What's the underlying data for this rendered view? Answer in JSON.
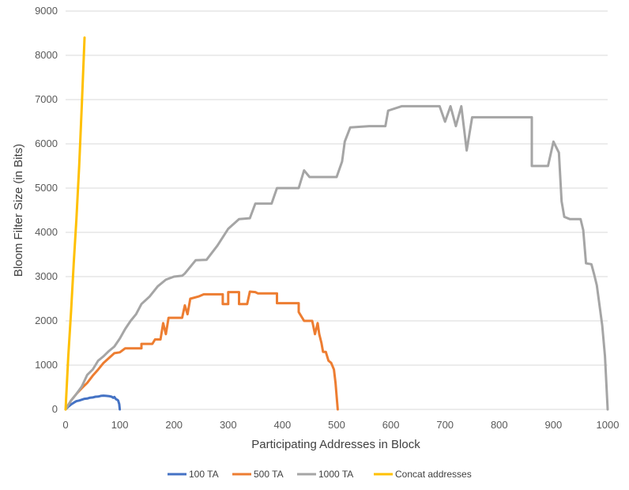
{
  "chart_data": {
    "type": "line",
    "title": "",
    "xlabel": "Participating Addresses in Block",
    "ylabel": "Bloom Filter Size (in Bits)",
    "xlim": [
      0,
      1000
    ],
    "ylim": [
      0,
      9000
    ],
    "x_ticks": [
      0,
      100,
      200,
      300,
      400,
      500,
      600,
      700,
      800,
      900,
      1000
    ],
    "y_ticks": [
      0,
      1000,
      2000,
      3000,
      4000,
      5000,
      6000,
      7000,
      8000,
      9000
    ],
    "grid": "horizontal",
    "legend_position": "bottom",
    "series": [
      {
        "name": "100 TA",
        "color": "#4472C4",
        "points": [
          [
            0,
            0
          ],
          [
            5,
            60
          ],
          [
            10,
            110
          ],
          [
            15,
            150
          ],
          [
            20,
            185
          ],
          [
            25,
            200
          ],
          [
            30,
            220
          ],
          [
            35,
            240
          ],
          [
            40,
            245
          ],
          [
            45,
            265
          ],
          [
            50,
            270
          ],
          [
            55,
            285
          ],
          [
            60,
            290
          ],
          [
            65,
            305
          ],
          [
            70,
            310
          ],
          [
            75,
            305
          ],
          [
            80,
            300
          ],
          [
            85,
            285
          ],
          [
            88,
            260
          ],
          [
            90,
            280
          ],
          [
            93,
            230
          ],
          [
            95,
            220
          ],
          [
            97,
            200
          ],
          [
            99,
            120
          ],
          [
            100,
            0
          ]
        ]
      },
      {
        "name": "500 TA",
        "color": "#ED7D31",
        "points": [
          [
            0,
            0
          ],
          [
            10,
            200
          ],
          [
            20,
            350
          ],
          [
            30,
            480
          ],
          [
            40,
            600
          ],
          [
            50,
            760
          ],
          [
            60,
            900
          ],
          [
            70,
            1050
          ],
          [
            80,
            1160
          ],
          [
            90,
            1270
          ],
          [
            100,
            1290
          ],
          [
            110,
            1380
          ],
          [
            140,
            1380
          ],
          [
            140,
            1480
          ],
          [
            160,
            1480
          ],
          [
            165,
            1580
          ],
          [
            175,
            1580
          ],
          [
            180,
            1950
          ],
          [
            185,
            1700
          ],
          [
            190,
            2070
          ],
          [
            215,
            2070
          ],
          [
            220,
            2350
          ],
          [
            225,
            2150
          ],
          [
            230,
            2500
          ],
          [
            245,
            2550
          ],
          [
            255,
            2600
          ],
          [
            290,
            2600
          ],
          [
            290,
            2380
          ],
          [
            300,
            2380
          ],
          [
            300,
            2650
          ],
          [
            320,
            2650
          ],
          [
            320,
            2380
          ],
          [
            335,
            2380
          ],
          [
            340,
            2660
          ],
          [
            350,
            2650
          ],
          [
            355,
            2620
          ],
          [
            390,
            2620
          ],
          [
            390,
            2400
          ],
          [
            430,
            2400
          ],
          [
            430,
            2200
          ],
          [
            440,
            2000
          ],
          [
            455,
            2000
          ],
          [
            460,
            1700
          ],
          [
            465,
            1950
          ],
          [
            468,
            1700
          ],
          [
            472,
            1500
          ],
          [
            475,
            1300
          ],
          [
            480,
            1300
          ],
          [
            485,
            1100
          ],
          [
            490,
            1050
          ],
          [
            495,
            900
          ],
          [
            498,
            600
          ],
          [
            500,
            300
          ],
          [
            502,
            0
          ]
        ]
      },
      {
        "name": "1000 TA",
        "color": "#A5A5A5",
        "points": [
          [
            0,
            0
          ],
          [
            10,
            200
          ],
          [
            20,
            350
          ],
          [
            30,
            520
          ],
          [
            40,
            780
          ],
          [
            50,
            900
          ],
          [
            60,
            1100
          ],
          [
            70,
            1200
          ],
          [
            80,
            1320
          ],
          [
            90,
            1420
          ],
          [
            100,
            1600
          ],
          [
            110,
            1820
          ],
          [
            120,
            2000
          ],
          [
            130,
            2150
          ],
          [
            140,
            2380
          ],
          [
            155,
            2550
          ],
          [
            170,
            2780
          ],
          [
            185,
            2930
          ],
          [
            200,
            3000
          ],
          [
            215,
            3020
          ],
          [
            220,
            3070
          ],
          [
            240,
            3370
          ],
          [
            260,
            3380
          ],
          [
            280,
            3700
          ],
          [
            300,
            4080
          ],
          [
            320,
            4300
          ],
          [
            340,
            4320
          ],
          [
            350,
            4650
          ],
          [
            380,
            4650
          ],
          [
            390,
            5000
          ],
          [
            430,
            5000
          ],
          [
            440,
            5400
          ],
          [
            450,
            5250
          ],
          [
            500,
            5250
          ],
          [
            510,
            5600
          ],
          [
            515,
            6050
          ],
          [
            525,
            6370
          ],
          [
            560,
            6400
          ],
          [
            590,
            6400
          ],
          [
            595,
            6750
          ],
          [
            620,
            6850
          ],
          [
            690,
            6850
          ],
          [
            700,
            6500
          ],
          [
            710,
            6850
          ],
          [
            720,
            6400
          ],
          [
            730,
            6850
          ],
          [
            740,
            5850
          ],
          [
            750,
            6600
          ],
          [
            860,
            6600
          ],
          [
            860,
            5500
          ],
          [
            890,
            5500
          ],
          [
            900,
            6050
          ],
          [
            910,
            5800
          ],
          [
            915,
            4700
          ],
          [
            920,
            4350
          ],
          [
            930,
            4300
          ],
          [
            950,
            4300
          ],
          [
            955,
            4050
          ],
          [
            960,
            3300
          ],
          [
            970,
            3280
          ],
          [
            975,
            3050
          ],
          [
            980,
            2800
          ],
          [
            985,
            2350
          ],
          [
            990,
            1900
          ],
          [
            995,
            1200
          ],
          [
            1000,
            0
          ]
        ]
      },
      {
        "name": "Concat addresses",
        "color": "#FFC000",
        "points": [
          [
            0,
            0
          ],
          [
            5,
            1200
          ],
          [
            10,
            2200
          ],
          [
            15,
            3300
          ],
          [
            20,
            4300
          ],
          [
            25,
            5500
          ],
          [
            30,
            6900
          ],
          [
            35,
            8400
          ]
        ]
      }
    ]
  }
}
